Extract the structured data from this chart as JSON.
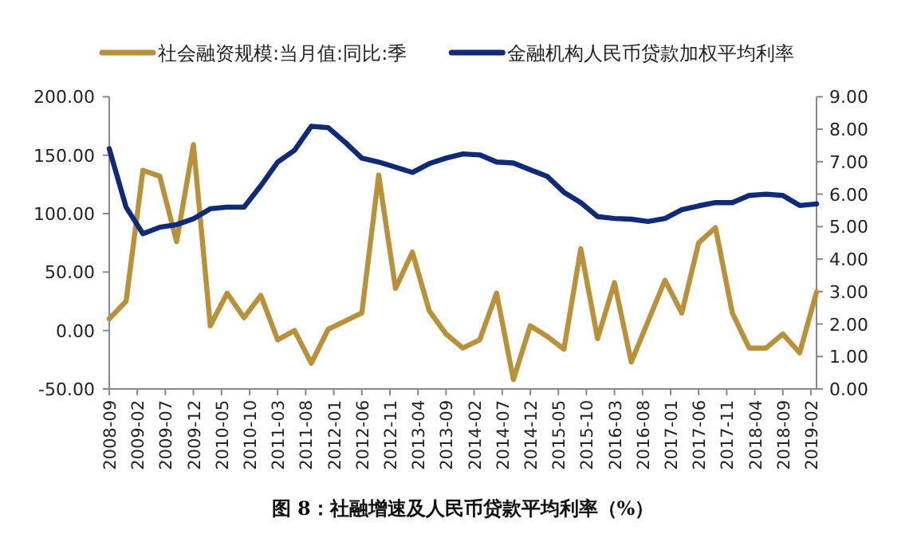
{
  "chart_data": {
    "type": "line",
    "legend": "top",
    "grid": false,
    "annotations": [
      "图 8：社融增速及人民币贷款平均利率（%）"
    ],
    "x": [
      "2008-09",
      "2008-12",
      "2009-03",
      "2009-06",
      "2009-09",
      "2009-12",
      "2010-03",
      "2010-06",
      "2010-09",
      "2010-12",
      "2011-03",
      "2011-06",
      "2011-09",
      "2011-12",
      "2012-03",
      "2012-06",
      "2012-09",
      "2012-12",
      "2013-03",
      "2013-06",
      "2013-09",
      "2013-12",
      "2014-03",
      "2014-06",
      "2014-09",
      "2014-12",
      "2015-03",
      "2015-06",
      "2015-09",
      "2015-12",
      "2016-03",
      "2016-06",
      "2016-09",
      "2016-12",
      "2017-03",
      "2017-06",
      "2017-09",
      "2017-12",
      "2018-03",
      "2018-06",
      "2018-09",
      "2018-12",
      "2019-03"
    ],
    "xlim": [
      "2008-09",
      "2019-03"
    ],
    "xticks": [
      "2008-09",
      "2009-02",
      "2009-07",
      "2009-12",
      "2010-05",
      "2010-10",
      "2011-03",
      "2011-08",
      "2012-01",
      "2012-06",
      "2012-11",
      "2013-04",
      "2013-09",
      "2014-02",
      "2014-07",
      "2014-12",
      "2015-05",
      "2015-10",
      "2016-03",
      "2016-08",
      "2017-01",
      "2017-06",
      "2017-11",
      "2018-04",
      "2018-09",
      "2019-02"
    ],
    "ylim": [
      -50,
      200
    ],
    "yticks": [
      {
        "value": -50,
        "label": "-50.00"
      },
      {
        "value": 0,
        "label": "0.00"
      },
      {
        "value": 50,
        "label": "50.00"
      },
      {
        "value": 100,
        "label": "100.00"
      },
      {
        "value": 150,
        "label": "150.00"
      },
      {
        "value": 200,
        "label": "200.00"
      }
    ],
    "y2lim": [
      0,
      9
    ],
    "y2ticks": [
      {
        "value": 0,
        "label": "0.00"
      },
      {
        "value": 1,
        "label": "1.00"
      },
      {
        "value": 2,
        "label": "2.00"
      },
      {
        "value": 3,
        "label": "3.00"
      },
      {
        "value": 4,
        "label": "4.00"
      },
      {
        "value": 5,
        "label": "5.00"
      },
      {
        "value": 6,
        "label": "6.00"
      },
      {
        "value": 7,
        "label": "7.00"
      },
      {
        "value": 8,
        "label": "8.00"
      },
      {
        "value": 9,
        "label": "9.00"
      }
    ],
    "series": [
      {
        "name": "社会融资规模:当月值:同比:季",
        "color": "#b8913a",
        "values": [
          10,
          25,
          137,
          132,
          76,
          159,
          4,
          32,
          11,
          30,
          -8,
          0,
          -28,
          1,
          8,
          15,
          133,
          36,
          67,
          17,
          -3,
          -15,
          -8,
          32,
          -42,
          4,
          -5,
          -16,
          70,
          -7,
          41,
          -27,
          8,
          43,
          15,
          75,
          88,
          15,
          -15,
          -15,
          -3,
          -19,
          33
        ]
      },
      {
        "name": "金融机构人民币贷款加权平均利率",
        "color": "#0f2a78",
        "axis": "y2",
        "values": [
          7.4,
          5.6,
          4.78,
          4.98,
          5.06,
          5.24,
          5.55,
          5.6,
          5.6,
          6.26,
          6.99,
          7.35,
          8.09,
          8.05,
          7.6,
          7.11,
          6.99,
          6.83,
          6.67,
          6.94,
          7.11,
          7.24,
          7.21,
          6.99,
          6.96,
          6.75,
          6.55,
          6.06,
          5.74,
          5.31,
          5.25,
          5.23,
          5.16,
          5.25,
          5.52,
          5.64,
          5.74,
          5.74,
          5.96,
          6.0,
          5.96,
          5.65,
          5.7
        ]
      }
    ]
  }
}
